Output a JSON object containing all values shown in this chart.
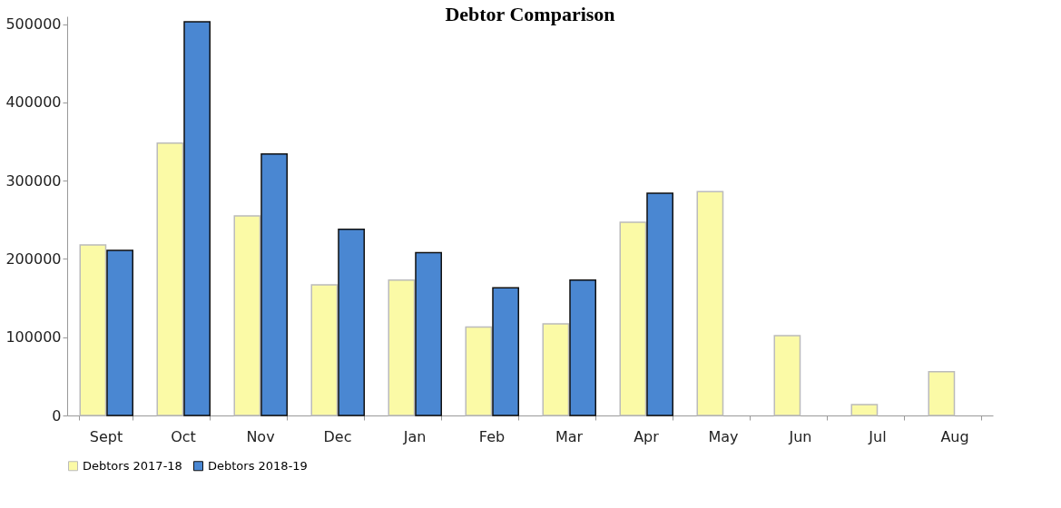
{
  "chart_data": {
    "type": "bar",
    "title": "Debtor Comparison",
    "categories": [
      "Sept",
      "Oct",
      "Nov",
      "Dec",
      "Jan",
      "Feb",
      "Mar",
      "Apr",
      "May",
      "Jun",
      "Jul",
      "Aug"
    ],
    "series": [
      {
        "name": "Debtors 2017-18",
        "color": "#fbfaa6",
        "values": [
          218000,
          348000,
          255000,
          167000,
          173000,
          113000,
          117000,
          247000,
          286000,
          102000,
          14000,
          56000
        ]
      },
      {
        "name": "Debtors 2018-19",
        "color": "#4a87d2",
        "values": [
          211000,
          503000,
          334000,
          238000,
          208000,
          163000,
          173000,
          284000,
          null,
          null,
          null,
          null
        ]
      }
    ],
    "ylim": [
      0,
      510000
    ],
    "yticks": [
      0,
      100000,
      200000,
      300000,
      400000,
      500000
    ],
    "grid": false,
    "legend": "bottom"
  }
}
